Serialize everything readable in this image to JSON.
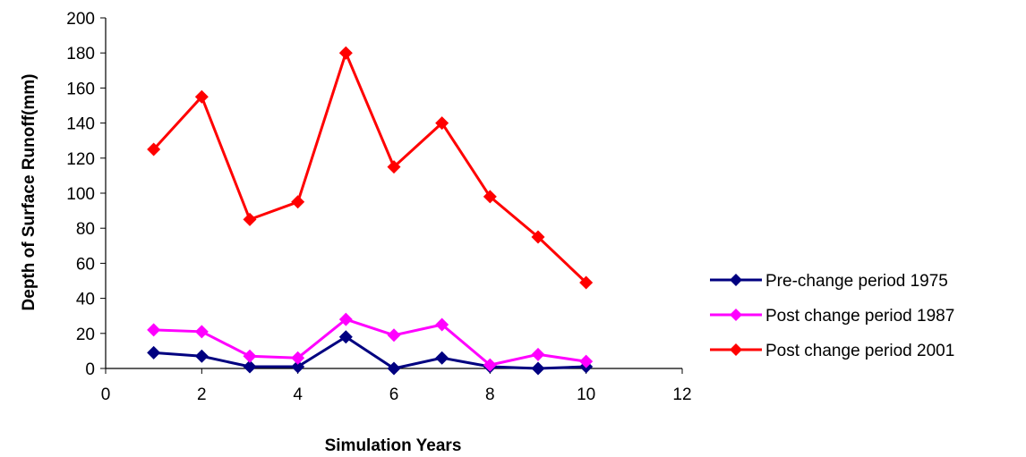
{
  "chart_data": {
    "type": "line",
    "title": "",
    "xlabel": "Simulation Years",
    "ylabel": "Depth of Surface Runoff(mm)",
    "xlim": [
      0,
      12
    ],
    "ylim": [
      0,
      200
    ],
    "xticks": [
      0,
      2,
      4,
      6,
      8,
      10,
      12
    ],
    "yticks": [
      0,
      20,
      40,
      60,
      80,
      100,
      120,
      140,
      160,
      180,
      200
    ],
    "x": [
      1,
      2,
      3,
      4,
      5,
      6,
      7,
      8,
      9,
      10
    ],
    "grid": false,
    "legend_position": "right",
    "series": [
      {
        "name": "Pre-change period 1975",
        "color": "#000080",
        "values": [
          9,
          7,
          1,
          1,
          18,
          0,
          6,
          1,
          0,
          1
        ]
      },
      {
        "name": "Post change period 1987",
        "color": "#FF00FF",
        "values": [
          22,
          21,
          7,
          6,
          28,
          19,
          25,
          2,
          8,
          4
        ]
      },
      {
        "name": "Post change period 2001",
        "color": "#FF0000",
        "values": [
          125,
          155,
          85,
          95,
          180,
          115,
          140,
          98,
          75,
          49
        ]
      }
    ]
  }
}
